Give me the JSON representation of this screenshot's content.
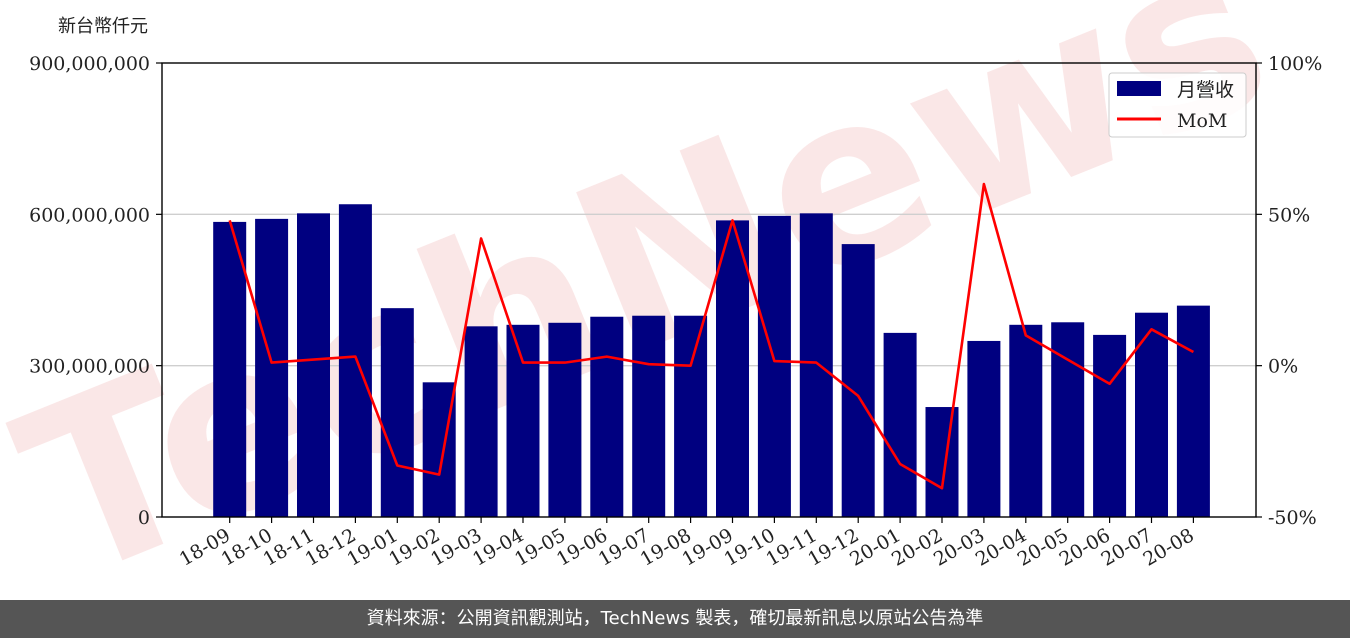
{
  "chart_data": {
    "type": "bar",
    "unit_label": "新台幣仟元",
    "categories": [
      "18-09",
      "18-10",
      "18-11",
      "18-12",
      "19-01",
      "19-02",
      "19-03",
      "19-04",
      "19-05",
      "19-06",
      "19-07",
      "19-08",
      "19-09",
      "19-10",
      "19-11",
      "19-12",
      "20-01",
      "20-02",
      "20-03",
      "20-04",
      "20-05",
      "20-06",
      "20-07",
      "20-08"
    ],
    "series": [
      {
        "name": "月營收",
        "kind": "bar",
        "axis": "left",
        "color": "#000080",
        "values": [
          585000000,
          591000000,
          602000000,
          620000000,
          414000000,
          267000000,
          378000000,
          381000000,
          385000000,
          397000000,
          399000000,
          399000000,
          588000000,
          597000000,
          602000000,
          541000000,
          365000000,
          218000000,
          349000000,
          381000000,
          386000000,
          361000000,
          405000000,
          419000000
        ]
      },
      {
        "name": "MoM",
        "kind": "line",
        "axis": "right",
        "color": "#ff0000",
        "values": [
          48,
          1,
          2,
          3,
          -33,
          -36,
          42,
          1,
          1,
          3,
          0.5,
          0,
          48,
          1.5,
          1,
          -10,
          -32.5,
          -40.5,
          60,
          10,
          2,
          -6,
          12,
          4.5
        ]
      }
    ],
    "y_left": {
      "min": 0,
      "max": 900000000,
      "ticks": [
        0,
        300000000,
        600000000,
        900000000
      ],
      "tick_labels": [
        "0",
        "300,000,000",
        "600,000,000",
        "900,000,000"
      ]
    },
    "y_right": {
      "min": -50,
      "max": 100,
      "ticks": [
        -50,
        0,
        50,
        100
      ],
      "tick_labels": [
        "-50%",
        "0%",
        "50%",
        "100%"
      ]
    },
    "grid": "horizontal",
    "legend_position": "top-right",
    "watermark": "TechNews"
  },
  "footer": {
    "text": "資料來源：公開資訊觀測站，TechNews 製表，確切最新訊息以原站公告為準"
  }
}
